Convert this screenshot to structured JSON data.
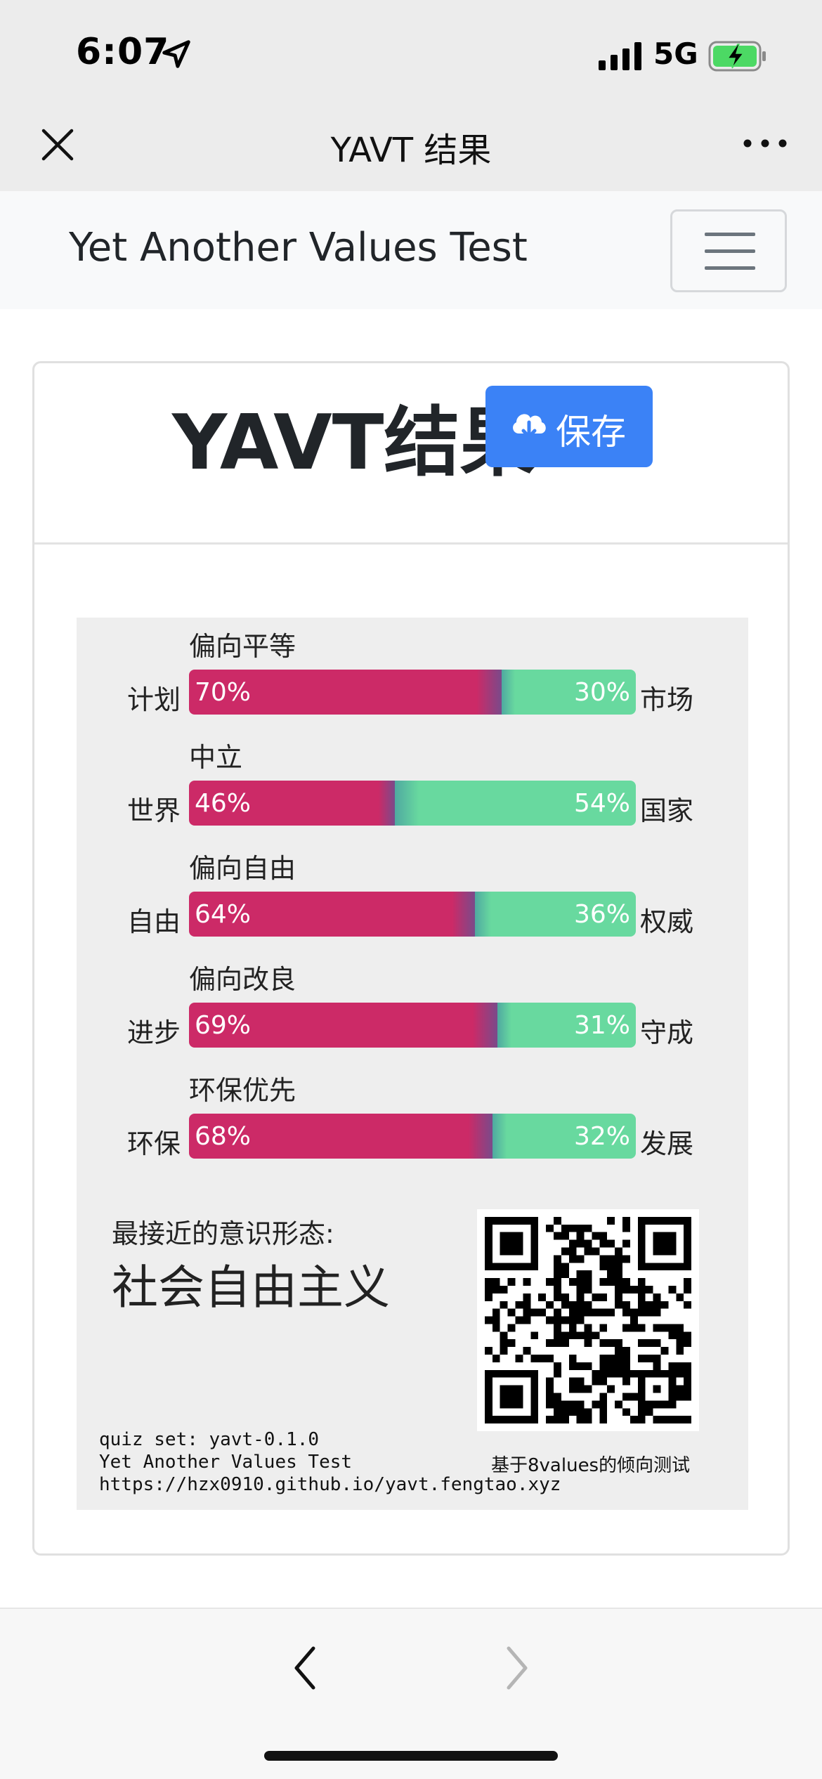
{
  "status": {
    "time": "6:07",
    "network": "5G",
    "icons": [
      "location-arrow-icon",
      "signal-icon",
      "battery-charging-icon"
    ]
  },
  "nav": {
    "title": "YAVT 结果",
    "close_icon": "close-icon",
    "more_icon": "more-icon"
  },
  "site": {
    "brand": "Yet Another Values Test",
    "menu_icon": "hamburger-icon"
  },
  "card": {
    "title": "YAVT结果",
    "save_label": "保存",
    "save_icon": "cloud-download-icon"
  },
  "colors": {
    "left": "#cc2a67",
    "right": "#68d99f",
    "save": "#3b82f6"
  },
  "axes": [
    {
      "category": "偏向平等",
      "left_label": "计划",
      "right_label": "市场",
      "left_pct": 70,
      "right_pct": 30,
      "left_text": "70%",
      "right_text": "30%"
    },
    {
      "category": "中立",
      "left_label": "世界",
      "right_label": "国家",
      "left_pct": 46,
      "right_pct": 54,
      "left_text": "46%",
      "right_text": "54%"
    },
    {
      "category": "偏向自由",
      "left_label": "自由",
      "right_label": "权威",
      "left_pct": 64,
      "right_pct": 36,
      "left_text": "64%",
      "right_text": "36%"
    },
    {
      "category": "偏向改良",
      "left_label": "进步",
      "right_label": "守成",
      "left_pct": 69,
      "right_pct": 31,
      "left_text": "69%",
      "right_text": "31%"
    },
    {
      "category": "环保优先",
      "left_label": "环保",
      "right_label": "发展",
      "left_pct": 68,
      "right_pct": 32,
      "left_text": "68%",
      "right_text": "32%"
    }
  ],
  "ideology": {
    "label": "最接近的意识形态:",
    "name": "社会自由主义"
  },
  "footer": {
    "quiz_set": "quiz set: yavt-0.1.0",
    "name": "Yet Another Values Test",
    "url": "https://hzx0910.github.io/yavt.fengtao.xyz",
    "credit": "基于8values的倾向测试"
  },
  "bottom": {
    "back_icon": "chevron-left-icon",
    "forward_icon": "chevron-right-icon"
  }
}
